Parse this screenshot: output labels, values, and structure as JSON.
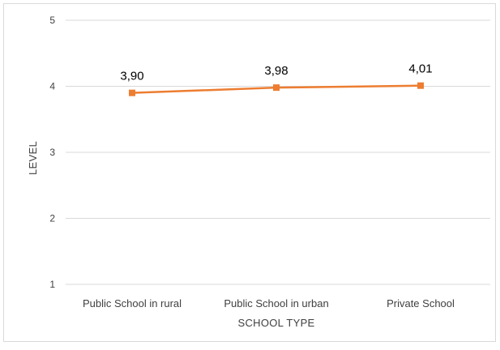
{
  "chart_data": {
    "type": "line",
    "title": "",
    "xlabel": "SCHOOL TYPE",
    "ylabel": "LEVEL",
    "categories": [
      "Public School in rural",
      "Public School in urban",
      "Private School"
    ],
    "series": [
      {
        "values": [
          3.9,
          3.98,
          4.01
        ]
      }
    ],
    "data_labels": [
      "3,90",
      "3,98",
      "4,01"
    ],
    "ylim": [
      1,
      5
    ],
    "yticks": [
      1,
      2,
      3,
      4,
      5
    ],
    "grid": true,
    "legend": "none",
    "colors": {
      "series": "#ed7d31",
      "grid": "#d9d9d9",
      "text": "#404040",
      "frame": "#d9d9d9"
    }
  }
}
